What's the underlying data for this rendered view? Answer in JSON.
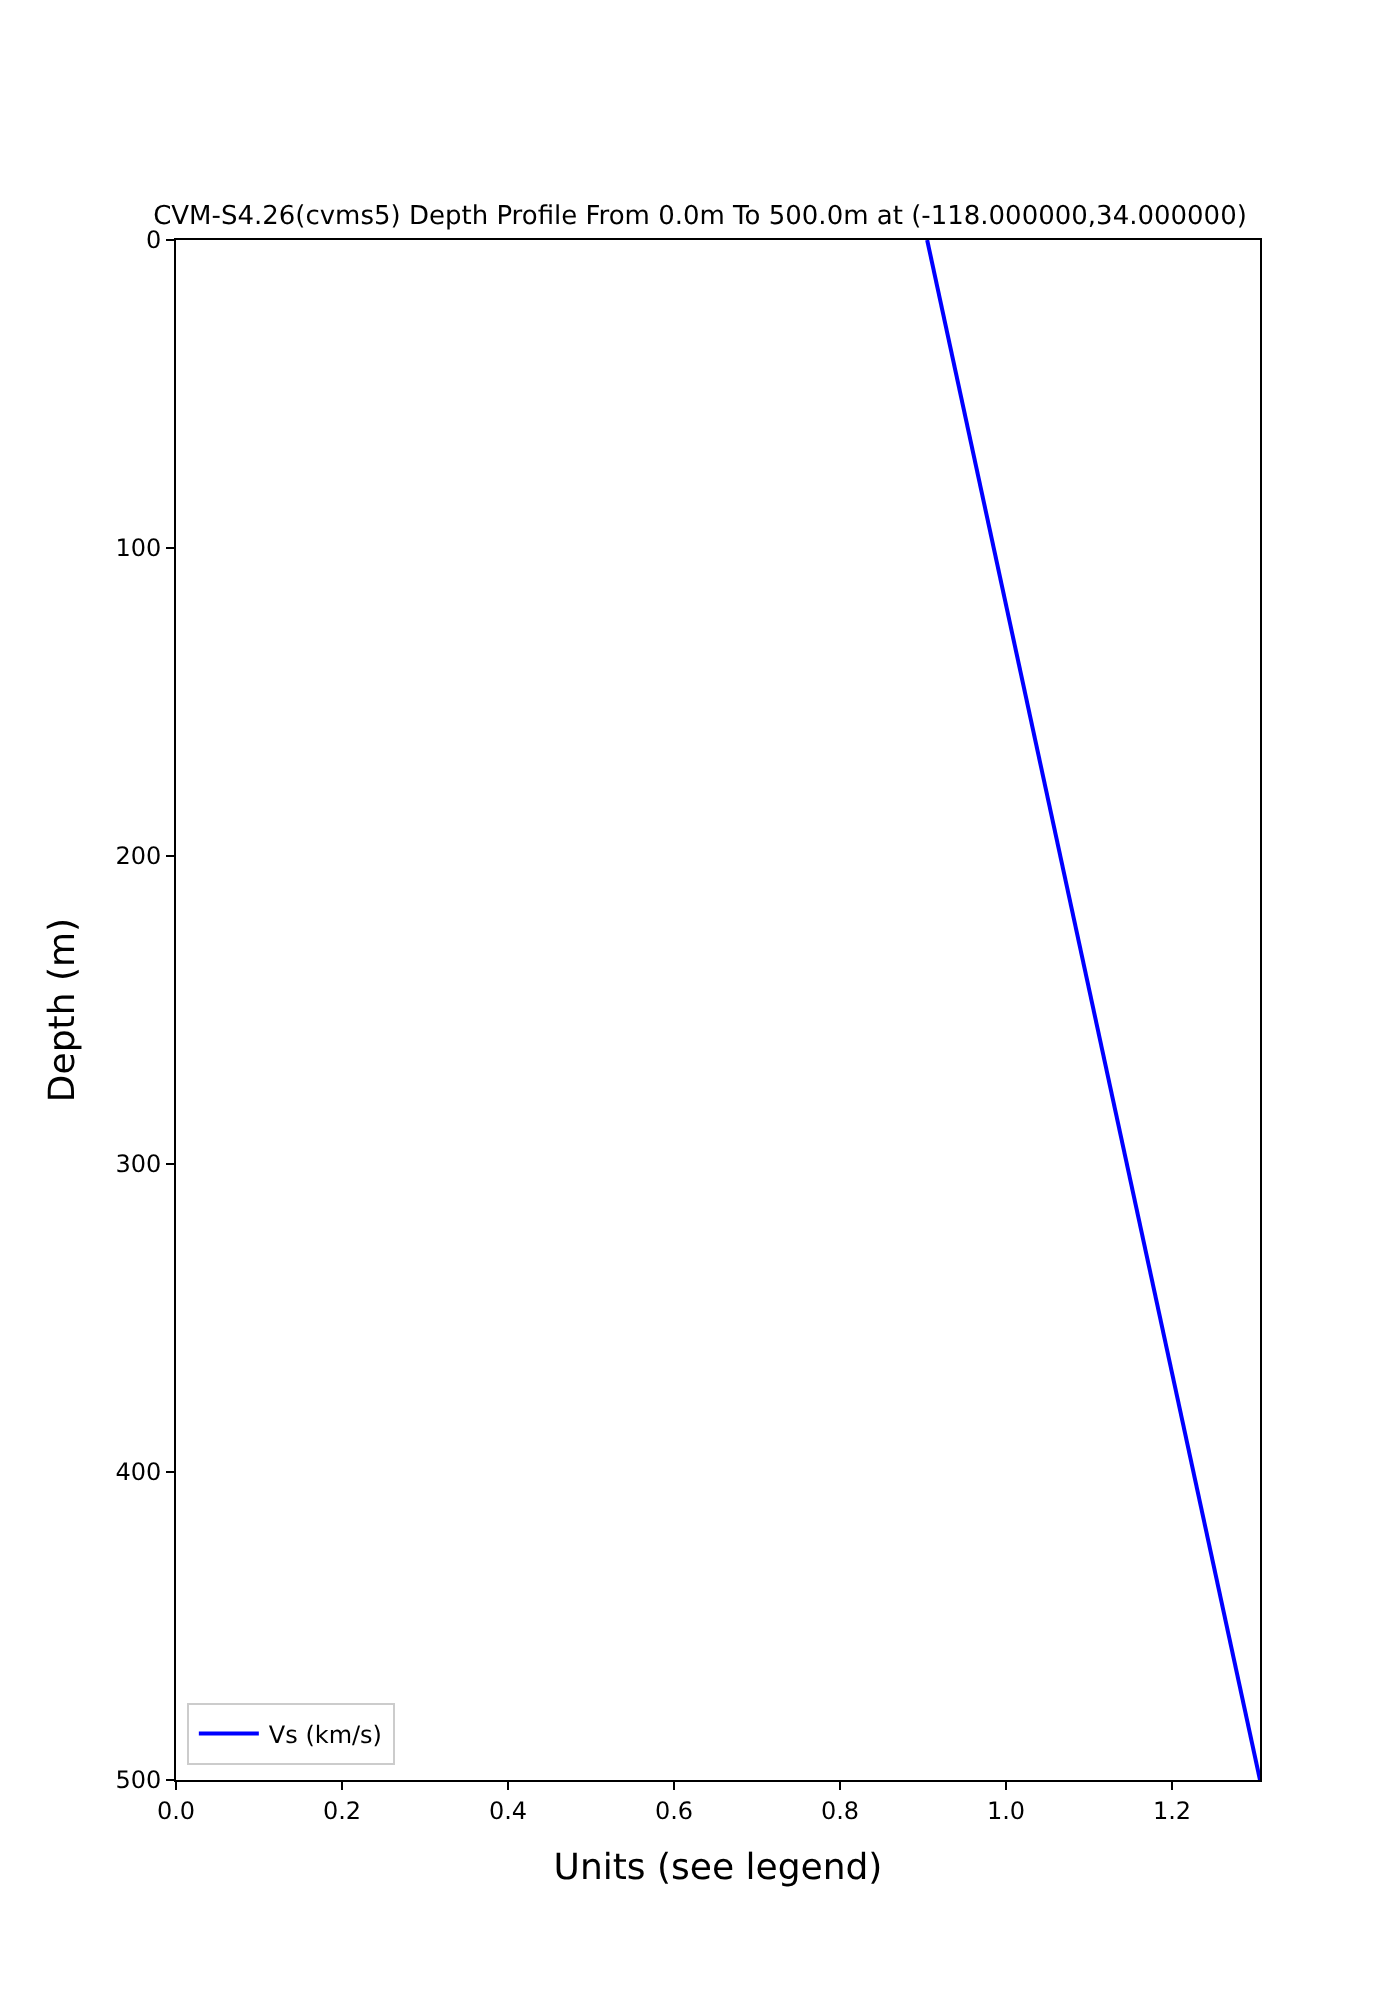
{
  "chart_data": {
    "type": "line",
    "title": "CVM-S4.26(cvms5) Depth Profile From 0.0m To 500.0m at (-118.000000,34.000000)",
    "xlabel": "Units (see legend)",
    "ylabel": "Depth (m)",
    "series": [
      {
        "name": "Vs (km/s)",
        "color": "#0000ff",
        "x": [
          0.905,
          1.306
        ],
        "values": [
          0,
          500
        ]
      }
    ],
    "xlim": [
      0,
      1.306
    ],
    "xticks": [
      {
        "value": 0,
        "label": "0.0"
      },
      {
        "value": 0.2,
        "label": "0.2"
      },
      {
        "value": 0.4,
        "label": "0.4"
      },
      {
        "value": 0.6,
        "label": "0.6"
      },
      {
        "value": 0.8,
        "label": "0.8"
      },
      {
        "value": 1.0,
        "label": "1.0"
      },
      {
        "value": 1.2,
        "label": "1.2"
      }
    ],
    "ylim": [
      500,
      0
    ],
    "yticks": [
      0,
      100,
      200,
      300,
      400,
      500
    ],
    "legend": "bottom left",
    "marker": "none",
    "line_style": "solid"
  }
}
